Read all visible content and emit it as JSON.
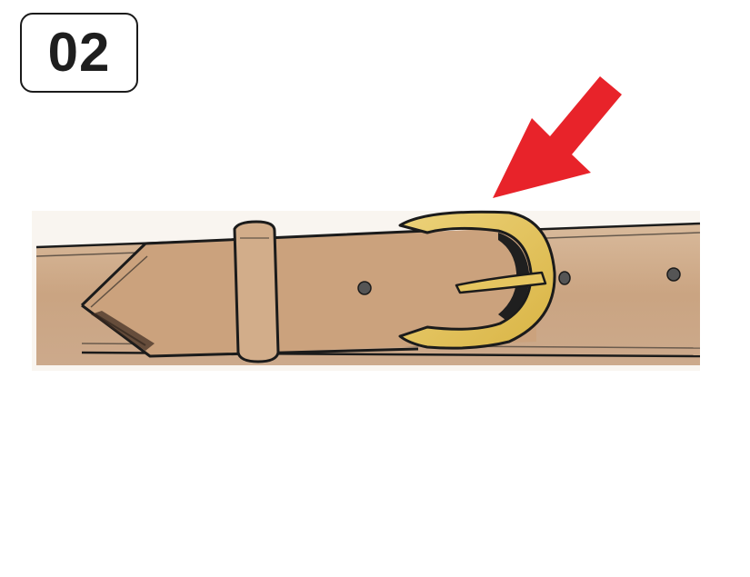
{
  "step": {
    "number": "02"
  },
  "illustration": {
    "subject": "belt-with-buckle",
    "pointer_icon": "arrow-down-left-icon",
    "colors": {
      "leather": "#c9a27e",
      "leather_shade": "#b98c66",
      "buckle": "#e3c05a",
      "buckle_shade": "#c9a23a",
      "outline": "#1b1b1b",
      "arrow": "#e8232a",
      "hole": "#555555"
    }
  }
}
